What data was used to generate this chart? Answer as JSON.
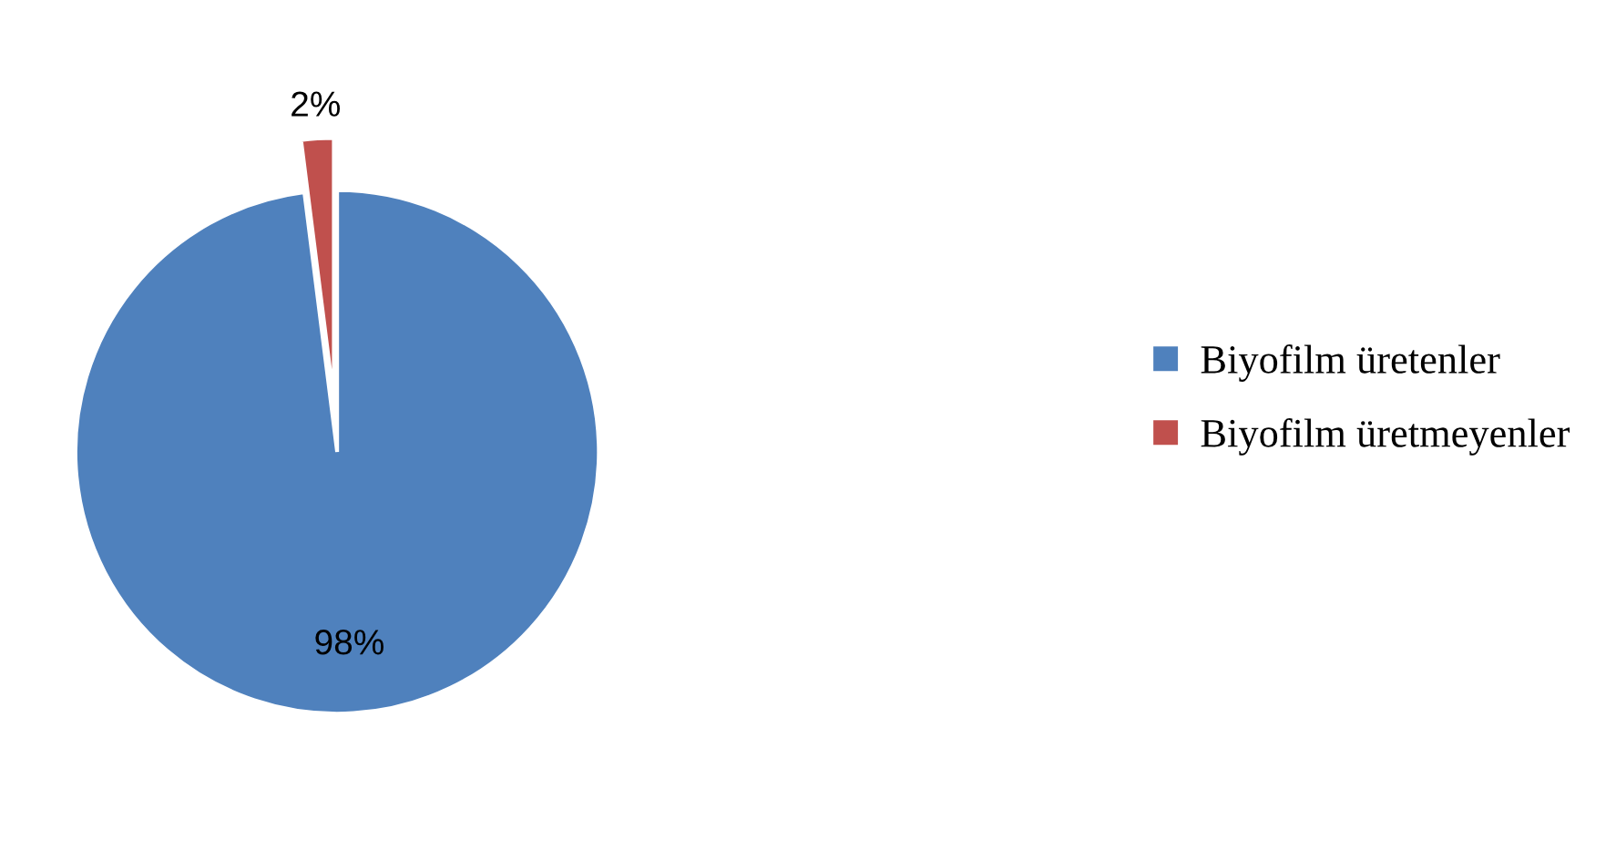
{
  "chart_data": {
    "type": "pie",
    "categories": [
      "Biyofilm üretenler",
      "Biyofilm üretmeyenler"
    ],
    "values": [
      98,
      2
    ],
    "colors": [
      "#4f81bd",
      "#c0504d"
    ],
    "value_labels": [
      "98%",
      "2%"
    ],
    "legend": "right"
  }
}
